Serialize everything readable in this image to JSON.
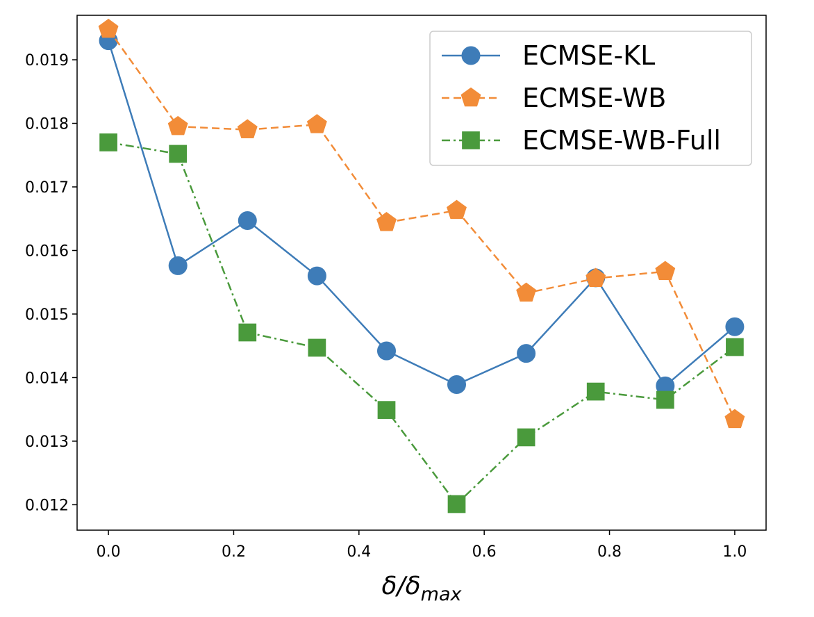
{
  "chart_data": {
    "type": "line",
    "title": "",
    "xlabel": {
      "main": "δ/δ",
      "sub": "max"
    },
    "ylabel": "",
    "xlim": [
      -0.05,
      1.05
    ],
    "ylim": [
      0.0116,
      0.0197
    ],
    "xticks": [
      0.0,
      0.2,
      0.4,
      0.6,
      0.8,
      1.0
    ],
    "xtick_labels": [
      "0.0",
      "0.2",
      "0.4",
      "0.6",
      "0.8",
      "1.0"
    ],
    "yticks": [
      0.012,
      0.013,
      0.014,
      0.015,
      0.016,
      0.017,
      0.018,
      0.019
    ],
    "ytick_labels": [
      "0.012",
      "0.013",
      "0.014",
      "0.015",
      "0.016",
      "0.017",
      "0.018",
      "0.019"
    ],
    "grid": false,
    "legend_position": "top-right",
    "x": [
      0.0,
      0.111,
      0.222,
      0.333,
      0.444,
      0.556,
      0.667,
      0.778,
      0.889,
      1.0
    ],
    "series": [
      {
        "name": "ECMSE-KL",
        "color": "#3e7cb8",
        "line_style": "solid",
        "marker": "circle",
        "values": [
          0.0193,
          0.01576,
          0.01647,
          0.0156,
          0.01442,
          0.01389,
          0.01438,
          0.01557,
          0.01387,
          0.0148
        ]
      },
      {
        "name": "ECMSE-WB",
        "color": "#f28c38",
        "line_style": "dashed",
        "marker": "pentagon",
        "values": [
          0.01948,
          0.01795,
          0.0179,
          0.01798,
          0.01644,
          0.01663,
          0.01533,
          0.01556,
          0.01567,
          0.01334
        ]
      },
      {
        "name": "ECMSE-WB-Full",
        "color": "#4a9a3c",
        "line_style": "dashdot",
        "marker": "square",
        "values": [
          0.0177,
          0.01752,
          0.01471,
          0.01447,
          0.01349,
          0.01201,
          0.01306,
          0.01378,
          0.01365,
          0.01448
        ]
      }
    ]
  }
}
